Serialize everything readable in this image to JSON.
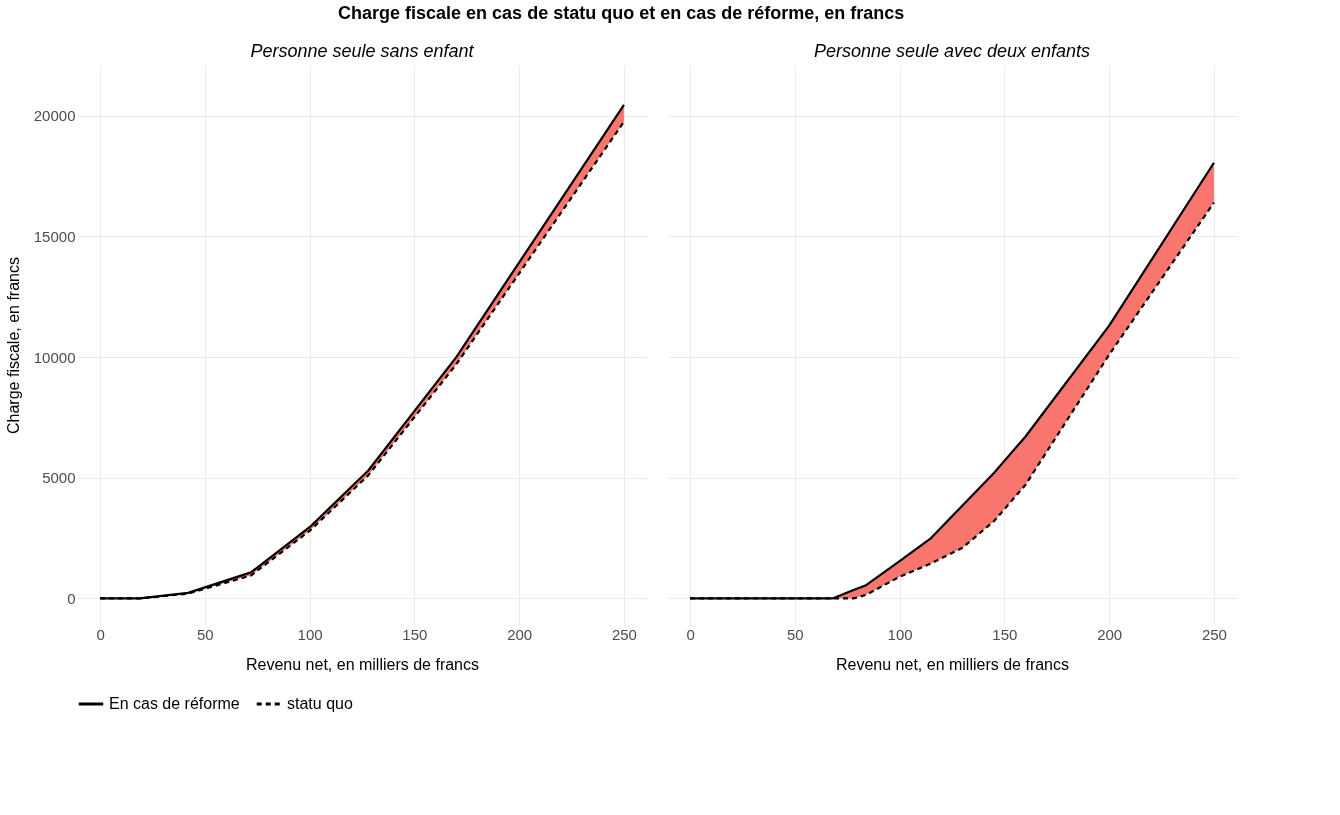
{
  "chart_data": [
    {
      "type": "line",
      "title": "Charge fiscale en cas de statu quo et en cas de réforme, en francs",
      "subtitle": "Personne seule sans enfant",
      "xlabel": "Revenu net, en milliers de francs",
      "ylabel": "Charge fiscale, en francs",
      "x": [
        0,
        19,
        42,
        72,
        100,
        128,
        170,
        250
      ],
      "series": [
        {
          "name": "En cas de réforme",
          "color": "#000000",
          "line_style": "solid",
          "values": [
            0,
            0,
            230,
            1080,
            2950,
            5300,
            10000,
            20450
          ],
          "lower": [
            0,
            0,
            200,
            950,
            2800,
            5100,
            9700,
            19750
          ],
          "upper": [
            0,
            0,
            230,
            1080,
            2950,
            5300,
            10000,
            20450
          ]
        },
        {
          "name": "statu quo",
          "color": "#000000",
          "line_style": "dashed",
          "values": [
            0,
            0,
            200,
            950,
            2800,
            5100,
            9700,
            19750
          ]
        }
      ],
      "xlim": [
        -11,
        261
      ],
      "xticks": [
        0,
        50,
        100,
        150,
        200,
        250
      ],
      "ylim": [
        -1100,
        22100
      ],
      "yticks": [
        0,
        5000,
        10000,
        15000,
        20000
      ],
      "grid": true,
      "legend": "bottom"
    },
    {
      "type": "line",
      "subtitle": "Personne seule avec deux enfants",
      "xlabel": "Revenu net, en milliers de francs",
      "x": [
        0,
        68,
        78,
        84,
        100,
        115,
        130,
        145,
        160,
        200,
        250
      ],
      "series": [
        {
          "name": "En cas de réforme",
          "color": "#000000",
          "line_style": "solid",
          "values": [
            0,
            0,
            350,
            550,
            1550,
            2500,
            3850,
            5200,
            6700,
            11300,
            18050
          ],
          "lower": [
            0,
            0,
            0,
            150,
            900,
            1450,
            2100,
            3200,
            4700,
            10100,
            16400
          ],
          "upper": [
            0,
            0,
            350,
            550,
            1550,
            2500,
            3850,
            5200,
            6700,
            11300,
            18050
          ]
        },
        {
          "name": "statu quo",
          "color": "#000000",
          "line_style": "dashed",
          "values": [
            0,
            0,
            0,
            150,
            900,
            1450,
            2100,
            3200,
            4700,
            10100,
            16400
          ]
        }
      ],
      "xlim": [
        -11,
        261
      ],
      "xticks": [
        0,
        50,
        100,
        150,
        200,
        250
      ],
      "ylim": [
        -1100,
        22100
      ],
      "yticks": [
        0,
        5000,
        10000,
        15000,
        20000
      ],
      "grid": true,
      "tick_labels": "x",
      "legend": false
    }
  ]
}
